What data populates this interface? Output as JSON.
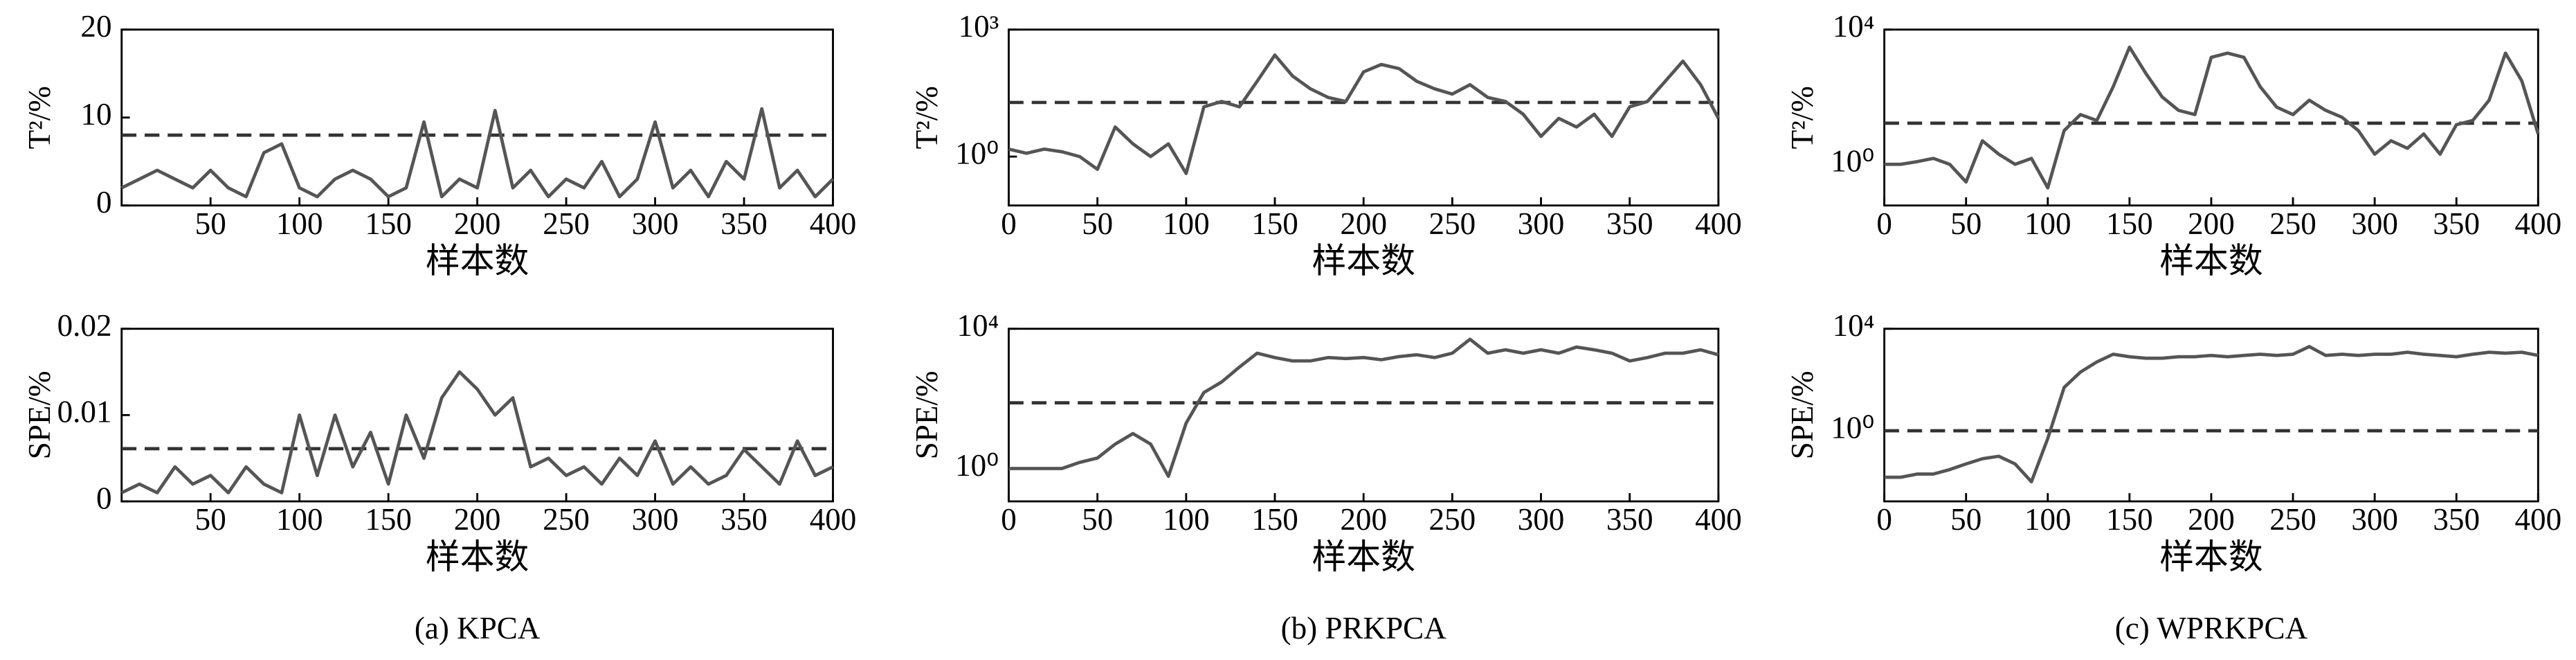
{
  "captions": [
    "(a) KPCA",
    "(b) PRKPCA",
    "(c) WPRKPCA"
  ],
  "chart_data": [
    {
      "type": "line",
      "ylabel": "T²/%",
      "xlabel": "样本数",
      "log": false,
      "xlim": [
        0,
        400
      ],
      "xticks": [
        50,
        100,
        150,
        200,
        250,
        300,
        350,
        400
      ],
      "ylim": [
        0,
        20
      ],
      "yticks": [
        0,
        10,
        20
      ],
      "threshold": 8,
      "x": [
        0,
        10,
        20,
        30,
        40,
        50,
        60,
        70,
        80,
        90,
        100,
        110,
        120,
        130,
        140,
        150,
        160,
        170,
        180,
        190,
        200,
        210,
        220,
        230,
        240,
        250,
        260,
        270,
        280,
        290,
        300,
        310,
        320,
        330,
        340,
        350,
        360,
        370,
        380,
        390,
        400
      ],
      "series": [
        {
          "color": "#555555",
          "values": [
            2,
            3,
            4,
            3,
            2,
            4,
            2,
            1,
            6,
            7,
            2,
            1,
            3,
            4,
            3,
            1,
            2,
            9.5,
            1,
            3,
            2,
            10.8,
            2,
            4,
            1,
            3,
            2,
            5,
            1,
            3,
            9.5,
            2,
            4,
            1,
            5,
            3,
            11,
            2,
            4,
            1,
            3
          ]
        }
      ]
    },
    {
      "type": "line",
      "ylabel": "SPE/%",
      "xlabel": "样本数",
      "log": false,
      "xlim": [
        0,
        400
      ],
      "xticks": [
        50,
        100,
        150,
        200,
        250,
        300,
        350,
        400
      ],
      "ylim": [
        0,
        0.02
      ],
      "yticks": [
        0,
        0.01,
        0.02
      ],
      "threshold": 0.0061,
      "x": [
        0,
        10,
        20,
        30,
        40,
        50,
        60,
        70,
        80,
        90,
        100,
        110,
        120,
        130,
        140,
        150,
        160,
        170,
        180,
        190,
        200,
        210,
        220,
        230,
        240,
        250,
        260,
        270,
        280,
        290,
        300,
        310,
        320,
        330,
        340,
        350,
        360,
        370,
        380,
        390,
        400
      ],
      "series": [
        {
          "color": "#555555",
          "values": [
            0.001,
            0.002,
            0.001,
            0.004,
            0.002,
            0.003,
            0.001,
            0.004,
            0.002,
            0.001,
            0.01,
            0.003,
            0.01,
            0.004,
            0.008,
            0.002,
            0.01,
            0.005,
            0.012,
            0.015,
            0.013,
            0.01,
            0.012,
            0.004,
            0.005,
            0.003,
            0.004,
            0.002,
            0.005,
            0.003,
            0.007,
            0.002,
            0.004,
            0.002,
            0.003,
            0.006,
            0.004,
            0.002,
            0.007,
            0.003,
            0.004
          ]
        }
      ]
    },
    {
      "type": "line",
      "ylabel": "T²/%",
      "xlabel": "样本数",
      "log": true,
      "xlim": [
        0,
        400
      ],
      "xticks": [
        0,
        50,
        100,
        150,
        200,
        250,
        300,
        350,
        400
      ],
      "ylim": [
        0.07,
        1000
      ],
      "yticks": [
        {
          "value": 1,
          "label": "10⁰"
        },
        {
          "value": 1000,
          "label": "10³"
        }
      ],
      "threshold": 19,
      "x": [
        0,
        10,
        20,
        30,
        40,
        50,
        60,
        70,
        80,
        90,
        100,
        110,
        120,
        130,
        140,
        150,
        160,
        170,
        180,
        190,
        200,
        210,
        220,
        230,
        240,
        250,
        260,
        270,
        280,
        290,
        300,
        310,
        320,
        330,
        340,
        350,
        360,
        370,
        380,
        390,
        400
      ],
      "series": [
        {
          "color": "#555555",
          "values": [
            1.5,
            1.2,
            1.5,
            1.3,
            1.0,
            0.5,
            5,
            2,
            1,
            2,
            0.4,
            15,
            20,
            15,
            60,
            250,
            80,
            40,
            25,
            20,
            100,
            150,
            120,
            60,
            40,
            30,
            50,
            25,
            20,
            10,
            3,
            8,
            5,
            10,
            3,
            15,
            20,
            60,
            180,
            50,
            8
          ]
        }
      ]
    },
    {
      "type": "line",
      "ylabel": "SPE/%",
      "xlabel": "样本数",
      "log": true,
      "xlim": [
        0,
        400
      ],
      "xticks": [
        0,
        50,
        100,
        150,
        200,
        250,
        300,
        350,
        400
      ],
      "ylim": [
        0.115,
        10000
      ],
      "yticks": [
        {
          "value": 1,
          "label": "10⁰"
        },
        {
          "value": 10000,
          "label": "10⁴"
        }
      ],
      "threshold": 76,
      "x": [
        0,
        10,
        20,
        30,
        40,
        50,
        60,
        70,
        80,
        90,
        100,
        110,
        120,
        130,
        140,
        150,
        160,
        170,
        180,
        190,
        200,
        210,
        220,
        230,
        240,
        250,
        260,
        270,
        280,
        290,
        300,
        310,
        320,
        330,
        340,
        350,
        360,
        370,
        380,
        390,
        400
      ],
      "series": [
        {
          "color": "#555555",
          "values": [
            1,
            1,
            1,
            1,
            1.5,
            2,
            5,
            10,
            5,
            0.6,
            20,
            150,
            300,
            800,
            2000,
            1500,
            1200,
            1200,
            1500,
            1400,
            1500,
            1300,
            1600,
            1800,
            1500,
            2000,
            5000,
            2000,
            2500,
            2000,
            2500,
            2000,
            3000,
            2500,
            2000,
            1200,
            1500,
            2000,
            2000,
            2500,
            1800
          ]
        }
      ]
    },
    {
      "type": "line",
      "ylabel": "T²/%",
      "xlabel": "样本数",
      "log": true,
      "xlim": [
        0,
        400
      ],
      "xticks": [
        0,
        50,
        100,
        150,
        200,
        250,
        300,
        350,
        400
      ],
      "ylim": [
        0.06,
        10000
      ],
      "yticks": [
        {
          "value": 1,
          "label": "10⁰"
        },
        {
          "value": 10000,
          "label": "10⁴"
        }
      ],
      "threshold": 16.6,
      "x": [
        0,
        10,
        20,
        30,
        40,
        50,
        60,
        70,
        80,
        90,
        100,
        110,
        120,
        130,
        140,
        150,
        160,
        170,
        180,
        190,
        200,
        210,
        220,
        230,
        240,
        250,
        260,
        270,
        280,
        290,
        300,
        310,
        320,
        330,
        340,
        350,
        360,
        370,
        380,
        390,
        400
      ],
      "series": [
        {
          "color": "#555555",
          "values": [
            1,
            1,
            1.2,
            1.5,
            1,
            0.3,
            5,
            2,
            1,
            1.5,
            0.2,
            10,
            30,
            20,
            200,
            3000,
            500,
            100,
            40,
            30,
            1500,
            2000,
            1500,
            200,
            50,
            30,
            80,
            40,
            25,
            10,
            2,
            5,
            3,
            8,
            2,
            15,
            20,
            80,
            2000,
            300,
            8
          ]
        }
      ]
    },
    {
      "type": "line",
      "ylabel": "SPE/%",
      "xlabel": "样本数",
      "log": true,
      "xlim": [
        0,
        400
      ],
      "xticks": [
        0,
        50,
        100,
        150,
        200,
        250,
        300,
        350,
        400
      ],
      "ylim": [
        0.0017,
        10000
      ],
      "yticks": [
        {
          "value": 1,
          "label": "10⁰"
        },
        {
          "value": 10000,
          "label": "10⁴"
        }
      ],
      "threshold": 1,
      "x": [
        0,
        10,
        20,
        30,
        40,
        50,
        60,
        70,
        80,
        90,
        100,
        110,
        120,
        130,
        140,
        150,
        160,
        170,
        180,
        190,
        200,
        210,
        220,
        230,
        240,
        250,
        260,
        270,
        280,
        290,
        300,
        310,
        320,
        330,
        340,
        350,
        360,
        370,
        380,
        390,
        400
      ],
      "series": [
        {
          "color": "#555555",
          "values": [
            0.015,
            0.015,
            0.02,
            0.02,
            0.03,
            0.05,
            0.08,
            0.1,
            0.05,
            0.01,
            0.5,
            50,
            200,
            500,
            1000,
            800,
            700,
            700,
            800,
            800,
            900,
            800,
            900,
            1000,
            900,
            1000,
            2000,
            900,
            1000,
            900,
            1000,
            1000,
            1200,
            1000,
            900,
            800,
            1000,
            1200,
            1100,
            1200,
            900
          ]
        }
      ]
    }
  ]
}
